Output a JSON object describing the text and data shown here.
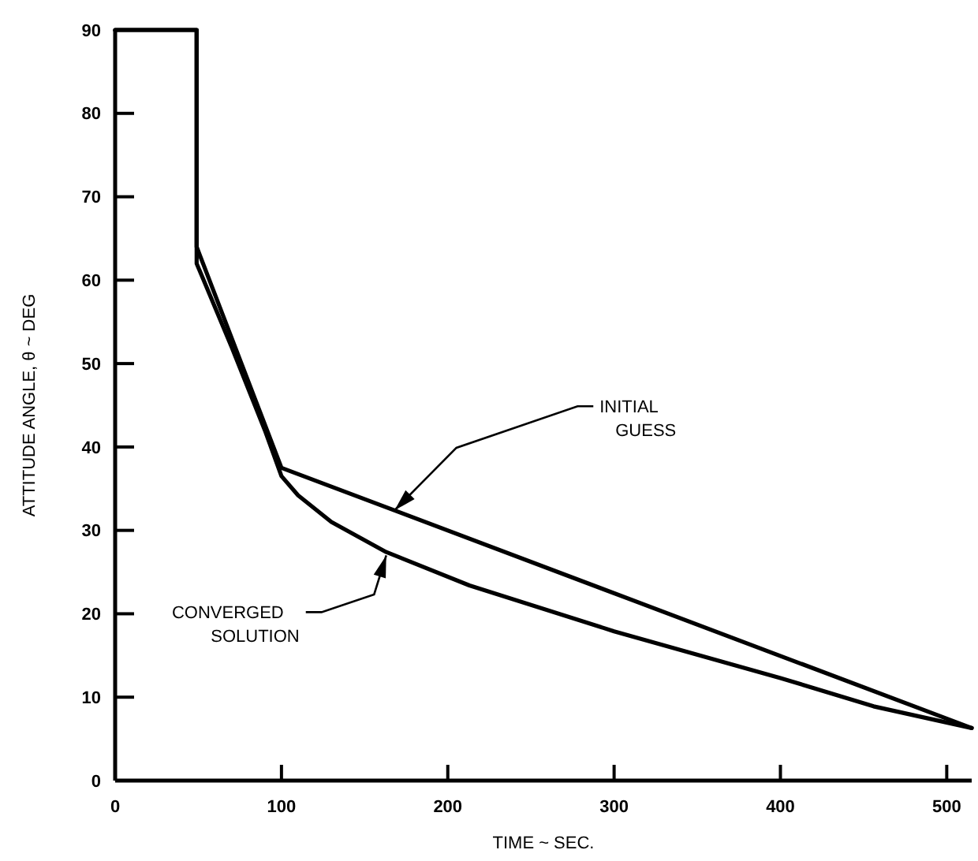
{
  "chart_data": {
    "type": "line",
    "xlabel": "TIME  ~ SEC.",
    "ylabel": "ATTITUDE ANGLE,  θ ~ DEG",
    "xlim": [
      0,
      515
    ],
    "ylim": [
      0,
      90
    ],
    "xticks": [
      0,
      100,
      200,
      300,
      400,
      500
    ],
    "yticks": [
      0,
      10,
      20,
      30,
      40,
      50,
      60,
      70,
      80,
      90
    ],
    "grid": false,
    "marker": "none",
    "line_style": "solid",
    "series": [
      {
        "color": "#000000",
        "x": [
          0,
          49,
          49,
          100,
          515
        ],
        "values": [
          90,
          90,
          64,
          37.5,
          6.3
        ]
      },
      {
        "color": "#000000",
        "x": [
          0,
          49,
          49,
          70,
          90,
          100,
          110,
          130,
          163,
          213,
          300,
          400,
          456,
          515
        ],
        "values": [
          90,
          90,
          62,
          52,
          42,
          36.5,
          34.2,
          31,
          27.4,
          23.4,
          17.9,
          12.3,
          8.9,
          6.3
        ]
      }
    ],
    "annotations": [
      {
        "text": "INITIAL\nGUESS",
        "x": 168,
        "y": 32.4
      },
      {
        "text": "CONVERGED\nSOLUTION",
        "x": 163,
        "y": 27
      }
    ]
  }
}
